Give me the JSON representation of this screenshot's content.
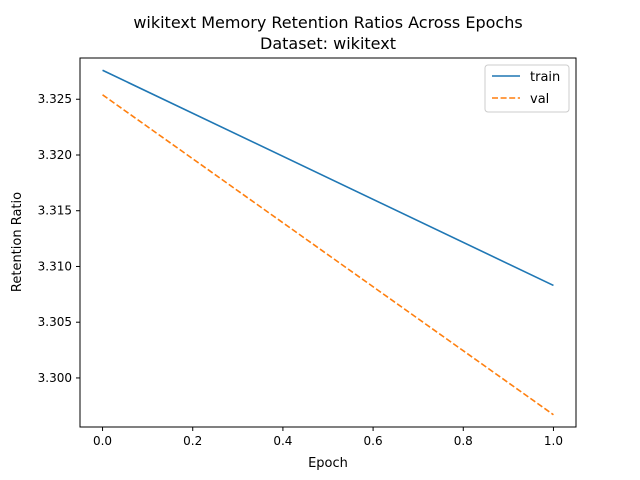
{
  "chart_data": {
    "type": "line",
    "title": "wikitext Memory Retention Ratios Across Epochs",
    "subtitle": "Dataset: wikitext",
    "xlabel": "Epoch",
    "ylabel": "Retention Ratio",
    "xlim": [
      -0.05,
      1.05
    ],
    "ylim": [
      3.2956,
      3.3287
    ],
    "x_ticks": [
      0.0,
      0.2,
      0.4,
      0.6,
      0.8,
      1.0
    ],
    "x_tick_labels": [
      "0.0",
      "0.2",
      "0.4",
      "0.6",
      "0.8",
      "1.0"
    ],
    "y_ticks": [
      3.3,
      3.305,
      3.31,
      3.315,
      3.32,
      3.325
    ],
    "y_tick_labels": [
      "3.300",
      "3.305",
      "3.310",
      "3.315",
      "3.320",
      "3.325"
    ],
    "grid": false,
    "legend_position": "top-right",
    "x": [
      0.0,
      1.0
    ],
    "series": [
      {
        "name": "train",
        "values": [
          3.3276,
          3.3083
        ],
        "color": "#1f77b4",
        "style": "solid"
      },
      {
        "name": "val",
        "values": [
          3.3254,
          3.2967
        ],
        "color": "#ff7f0e",
        "style": "dashed"
      }
    ]
  }
}
